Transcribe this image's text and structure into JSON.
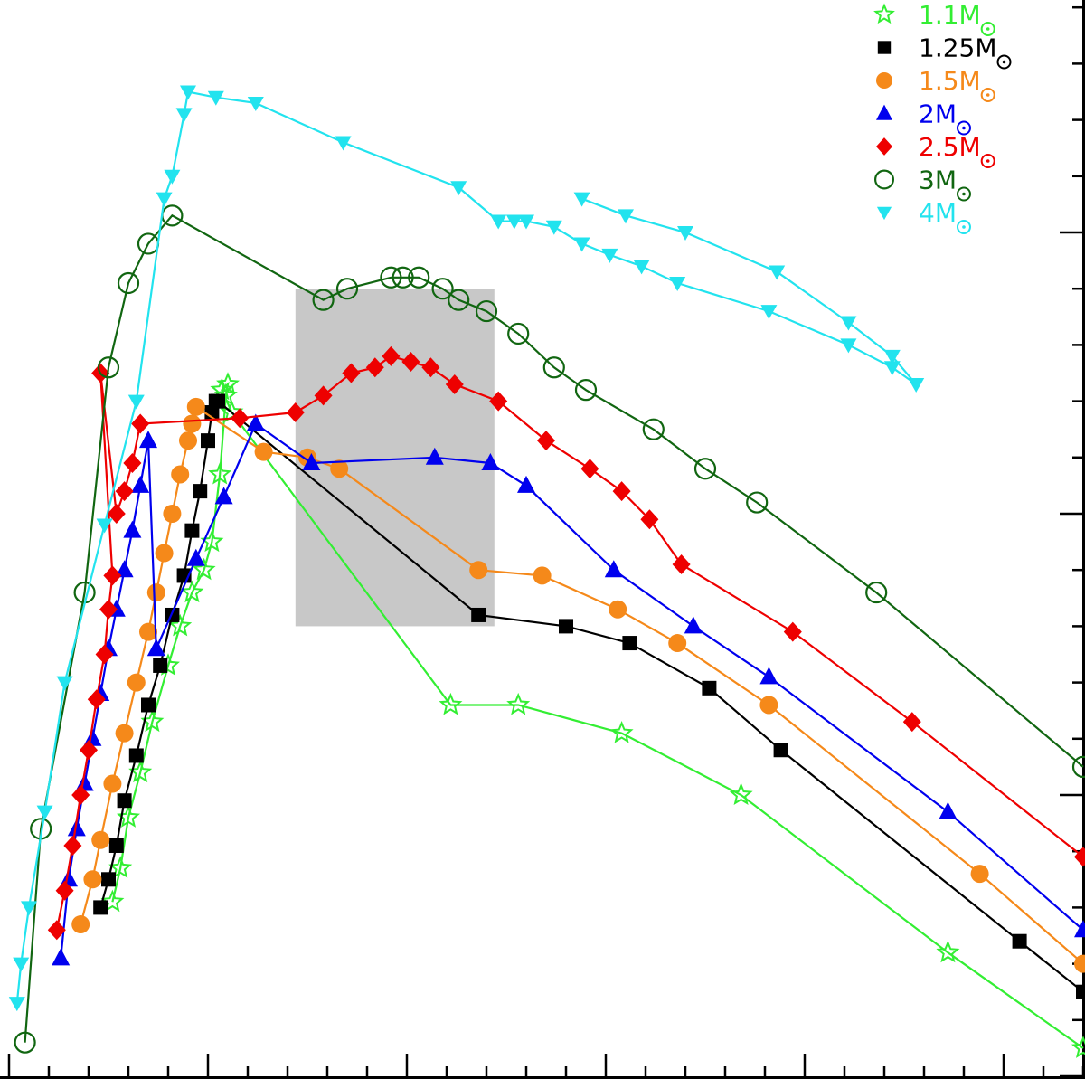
{
  "chart_data": {
    "type": "line",
    "title": "",
    "xlabel": "",
    "ylabel": "",
    "xlim": [
      0,
      27
    ],
    "ylim": [
      0,
      19
    ],
    "legend_position": "top-right",
    "shaded_region": {
      "x": [
        7.2,
        12.2
      ],
      "y": [
        8.0,
        14.0
      ],
      "color": "#c8c8c8"
    },
    "series": [
      {
        "name": "1.1",
        "unit": "M",
        "color": "#33ee33",
        "marker": "star",
        "x": [
          2.6,
          2.8,
          3.0,
          3.3,
          3.6,
          4.0,
          4.3,
          4.6,
          4.9,
          5.1,
          5.3,
          5.45,
          5.5,
          5.35,
          5.6,
          11.1,
          12.8,
          15.4,
          18.4,
          23.6,
          27.0
        ],
        "y": [
          3.1,
          3.7,
          4.6,
          5.4,
          6.3,
          7.3,
          8.0,
          8.6,
          9.0,
          9.5,
          10.7,
          12.1,
          12.3,
          12.2,
          11.8,
          6.6,
          6.6,
          6.1,
          5.0,
          2.2,
          0.5
        ]
      },
      {
        "name": "1.25",
        "unit": "M",
        "color": "#000000",
        "marker": "square",
        "x": [
          2.3,
          2.5,
          2.7,
          2.9,
          3.2,
          3.5,
          3.8,
          4.1,
          4.4,
          4.6,
          4.8,
          5.0,
          5.1,
          5.2,
          5.25,
          11.8,
          14.0,
          15.6,
          17.6,
          19.4,
          25.4,
          27.0
        ],
        "y": [
          3.0,
          3.5,
          4.1,
          4.9,
          5.7,
          6.6,
          7.3,
          8.2,
          8.9,
          9.7,
          10.4,
          11.3,
          11.8,
          12.0,
          12.0,
          8.2,
          8.0,
          7.7,
          6.9,
          5.8,
          2.4,
          1.5
        ]
      },
      {
        "name": "1.5",
        "unit": "M",
        "color": "#f5891a",
        "marker": "circle",
        "x": [
          1.8,
          2.1,
          2.3,
          2.6,
          2.9,
          3.2,
          3.5,
          3.7,
          3.9,
          4.1,
          4.3,
          4.5,
          4.6,
          4.7,
          6.4,
          7.5,
          8.3,
          11.8,
          13.4,
          15.3,
          16.8,
          19.1,
          24.4,
          27.0
        ],
        "y": [
          2.7,
          3.5,
          4.2,
          5.2,
          6.1,
          7.0,
          7.9,
          8.6,
          9.3,
          10.0,
          10.7,
          11.3,
          11.6,
          11.9,
          11.1,
          11.0,
          10.8,
          9.0,
          8.9,
          8.3,
          7.7,
          6.6,
          3.6,
          2.0
        ]
      },
      {
        "name": "2",
        "unit": "M",
        "color": "#0000ee",
        "marker": "triangle-up",
        "x": [
          1.3,
          1.5,
          1.7,
          1.9,
          2.1,
          2.3,
          2.5,
          2.7,
          2.9,
          3.1,
          3.3,
          3.5,
          3.7,
          4.7,
          5.4,
          6.2,
          7.6,
          10.7,
          12.1,
          13.0,
          15.2,
          17.2,
          19.1,
          23.6,
          27.0
        ],
        "y": [
          2.1,
          3.5,
          4.4,
          5.2,
          6.0,
          6.8,
          7.6,
          8.3,
          9.0,
          9.7,
          10.5,
          11.3,
          7.6,
          9.2,
          10.3,
          11.6,
          10.9,
          11.0,
          10.9,
          10.5,
          9.0,
          8.0,
          7.1,
          4.7,
          2.6
        ]
      },
      {
        "name": "2.5",
        "unit": "M",
        "color": "#ee0000",
        "marker": "diamond",
        "x": [
          1.2,
          1.4,
          1.6,
          1.8,
          2.0,
          2.2,
          2.4,
          2.5,
          2.6,
          2.3,
          2.7,
          2.9,
          3.1,
          3.3,
          5.8,
          7.2,
          7.9,
          8.6,
          9.2,
          9.6,
          10.1,
          10.6,
          11.2,
          12.3,
          13.5,
          14.6,
          15.4,
          16.1,
          16.9,
          19.7,
          22.7,
          27.0
        ],
        "y": [
          2.6,
          3.3,
          4.1,
          5.0,
          5.8,
          6.7,
          7.5,
          8.3,
          8.9,
          12.5,
          10.0,
          10.4,
          10.9,
          11.6,
          11.7,
          11.8,
          12.1,
          12.5,
          12.6,
          12.8,
          12.7,
          12.6,
          12.3,
          12.0,
          11.3,
          10.8,
          10.4,
          9.9,
          9.1,
          7.9,
          6.3,
          3.9
        ]
      },
      {
        "name": "3",
        "unit": "M",
        "color": "#116611",
        "marker": "circle-open",
        "x": [
          0.4,
          0.8,
          1.9,
          2.5,
          3.0,
          3.5,
          4.1,
          7.9,
          8.5,
          9.6,
          9.9,
          10.3,
          10.9,
          11.3,
          12.0,
          12.8,
          13.7,
          14.5,
          16.2,
          17.5,
          18.8,
          21.8,
          27.0
        ],
        "y": [
          0.6,
          4.4,
          8.6,
          12.6,
          14.1,
          14.8,
          15.3,
          13.8,
          14.0,
          14.2,
          14.2,
          14.2,
          14.0,
          13.8,
          13.6,
          13.2,
          12.6,
          12.2,
          11.5,
          10.8,
          10.2,
          8.6,
          5.5
        ]
      },
      {
        "name": "4",
        "unit": "M",
        "color": "#22e3ee",
        "marker": "triangle-down",
        "x": [
          0.2,
          0.3,
          0.5,
          0.9,
          1.4,
          2.4,
          3.2,
          3.9,
          4.1,
          4.4,
          4.5,
          5.2,
          6.2,
          8.4,
          11.3,
          12.3,
          12.7,
          13.0,
          13.7,
          14.4,
          15.1,
          15.9,
          16.8,
          19.1,
          21.1,
          22.2,
          22.8,
          22.2,
          21.1,
          19.3,
          17.0,
          15.5,
          14.4
        ],
        "y": [
          1.3,
          2.0,
          3.0,
          4.7,
          7.0,
          9.8,
          12.0,
          15.6,
          16.0,
          17.1,
          17.5,
          17.4,
          17.3,
          16.6,
          15.8,
          15.2,
          15.2,
          15.2,
          15.1,
          14.8,
          14.6,
          14.4,
          14.1,
          13.6,
          13.0,
          12.6,
          12.3,
          12.8,
          13.4,
          14.3,
          15.0,
          15.3,
          15.6
        ]
      }
    ]
  }
}
